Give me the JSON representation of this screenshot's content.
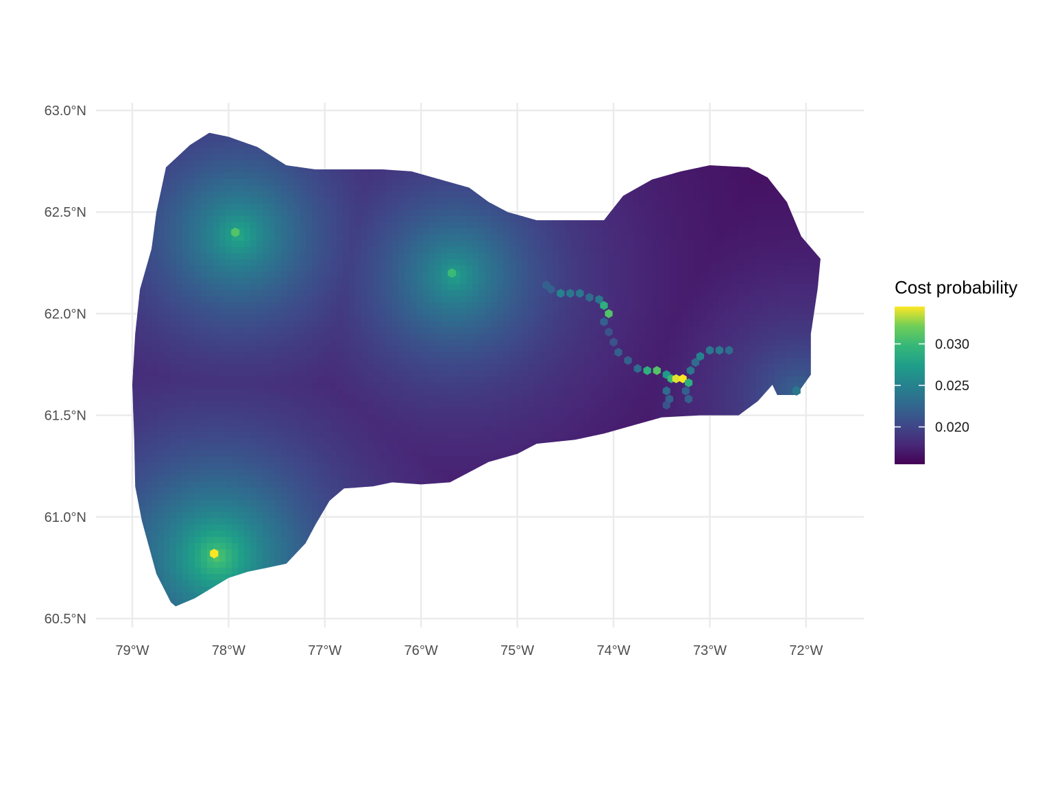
{
  "chart_data": {
    "type": "heatmap",
    "geometry": "hexagonal grid",
    "title": "",
    "xlabel": "",
    "ylabel": "",
    "xlim": [
      -79.4,
      -71.4
    ],
    "ylim": [
      60.42,
      63.06
    ],
    "grid": true,
    "x_ticks": [
      {
        "value": -79,
        "label": "79°W"
      },
      {
        "value": -78,
        "label": "78°W"
      },
      {
        "value": -77,
        "label": "77°W"
      },
      {
        "value": -76,
        "label": "76°W"
      },
      {
        "value": -75,
        "label": "75°W"
      },
      {
        "value": -74,
        "label": "74°W"
      },
      {
        "value": -73,
        "label": "73°W"
      },
      {
        "value": -72,
        "label": "72°W"
      }
    ],
    "y_ticks": [
      {
        "value": 60.5,
        "label": "60.5°N"
      },
      {
        "value": 61.0,
        "label": "61.0°N"
      },
      {
        "value": 61.5,
        "label": "61.5°N"
      },
      {
        "value": 62.0,
        "label": "62.0°N"
      },
      {
        "value": 62.5,
        "label": "62.5°N"
      },
      {
        "value": 63.0,
        "label": "63.0°N"
      }
    ],
    "region_outline": [
      [
        -78.55,
        60.56
      ],
      [
        -78.35,
        60.6
      ],
      [
        -78.0,
        60.7
      ],
      [
        -77.8,
        60.73
      ],
      [
        -77.4,
        60.77
      ],
      [
        -77.2,
        60.87
      ],
      [
        -77.1,
        60.96
      ],
      [
        -76.95,
        61.08
      ],
      [
        -76.8,
        61.14
      ],
      [
        -76.5,
        61.15
      ],
      [
        -76.3,
        61.17
      ],
      [
        -76.0,
        61.16
      ],
      [
        -75.7,
        61.17
      ],
      [
        -75.5,
        61.22
      ],
      [
        -75.3,
        61.27
      ],
      [
        -75.0,
        61.31
      ],
      [
        -74.8,
        61.36
      ],
      [
        -74.4,
        61.38
      ],
      [
        -74.1,
        61.41
      ],
      [
        -73.8,
        61.45
      ],
      [
        -73.5,
        61.49
      ],
      [
        -73.1,
        61.5
      ],
      [
        -72.7,
        61.5
      ],
      [
        -72.5,
        61.57
      ],
      [
        -72.35,
        61.65
      ],
      [
        -72.3,
        61.6
      ],
      [
        -72.1,
        61.6
      ],
      [
        -71.95,
        61.7
      ],
      [
        -71.95,
        61.9
      ],
      [
        -71.88,
        62.12
      ],
      [
        -71.85,
        62.27
      ],
      [
        -72.05,
        62.38
      ],
      [
        -72.2,
        62.55
      ],
      [
        -72.4,
        62.67
      ],
      [
        -72.6,
        62.72
      ],
      [
        -73.0,
        62.73
      ],
      [
        -73.3,
        62.7
      ],
      [
        -73.6,
        62.66
      ],
      [
        -73.9,
        62.58
      ],
      [
        -74.1,
        62.46
      ],
      [
        -74.4,
        62.46
      ],
      [
        -74.8,
        62.46
      ],
      [
        -75.1,
        62.5
      ],
      [
        -75.3,
        62.55
      ],
      [
        -75.5,
        62.62
      ],
      [
        -75.8,
        62.66
      ],
      [
        -76.1,
        62.7
      ],
      [
        -76.4,
        62.71
      ],
      [
        -76.8,
        62.71
      ],
      [
        -77.1,
        62.71
      ],
      [
        -77.4,
        62.73
      ],
      [
        -77.7,
        62.82
      ],
      [
        -78.0,
        62.87
      ],
      [
        -78.2,
        62.89
      ],
      [
        -78.4,
        62.83
      ],
      [
        -78.65,
        62.72
      ],
      [
        -78.75,
        62.5
      ],
      [
        -78.8,
        62.32
      ],
      [
        -78.92,
        62.12
      ],
      [
        -78.97,
        61.9
      ],
      [
        -79.0,
        61.65
      ],
      [
        -78.98,
        61.38
      ],
      [
        -78.97,
        61.15
      ],
      [
        -78.9,
        60.98
      ],
      [
        -78.75,
        60.72
      ],
      [
        -78.6,
        60.58
      ]
    ],
    "hotspots": [
      {
        "lon": -78.15,
        "lat": 60.82,
        "value": 0.0345
      },
      {
        "lon": -77.93,
        "lat": 62.4,
        "value": 0.031
      },
      {
        "lon": -75.68,
        "lat": 62.2,
        "value": 0.03
      },
      {
        "lon": -72.1,
        "lat": 61.62,
        "value": 0.024
      }
    ],
    "route_cells": [
      {
        "lon": -74.7,
        "lat": 62.14,
        "value": 0.022
      },
      {
        "lon": -74.65,
        "lat": 62.12,
        "value": 0.022
      },
      {
        "lon": -74.55,
        "lat": 62.1,
        "value": 0.025
      },
      {
        "lon": -74.45,
        "lat": 62.1,
        "value": 0.024
      },
      {
        "lon": -74.35,
        "lat": 62.1,
        "value": 0.024
      },
      {
        "lon": -74.25,
        "lat": 62.08,
        "value": 0.023
      },
      {
        "lon": -74.15,
        "lat": 62.07,
        "value": 0.024
      },
      {
        "lon": -74.1,
        "lat": 62.04,
        "value": 0.029
      },
      {
        "lon": -74.05,
        "lat": 62.0,
        "value": 0.031
      },
      {
        "lon": -74.1,
        "lat": 61.96,
        "value": 0.022
      },
      {
        "lon": -74.05,
        "lat": 61.91,
        "value": 0.021
      },
      {
        "lon": -74.0,
        "lat": 61.86,
        "value": 0.021
      },
      {
        "lon": -73.95,
        "lat": 61.81,
        "value": 0.022
      },
      {
        "lon": -73.85,
        "lat": 61.77,
        "value": 0.022
      },
      {
        "lon": -73.75,
        "lat": 61.73,
        "value": 0.023
      },
      {
        "lon": -73.65,
        "lat": 61.72,
        "value": 0.029
      },
      {
        "lon": -73.55,
        "lat": 61.72,
        "value": 0.031
      },
      {
        "lon": -73.45,
        "lat": 61.7,
        "value": 0.027
      },
      {
        "lon": -73.4,
        "lat": 61.68,
        "value": 0.03
      },
      {
        "lon": -73.35,
        "lat": 61.68,
        "value": 0.034
      },
      {
        "lon": -73.28,
        "lat": 61.68,
        "value": 0.0345
      },
      {
        "lon": -73.22,
        "lat": 61.66,
        "value": 0.029
      },
      {
        "lon": -73.2,
        "lat": 61.72,
        "value": 0.024
      },
      {
        "lon": -73.15,
        "lat": 61.76,
        "value": 0.023
      },
      {
        "lon": -73.1,
        "lat": 61.79,
        "value": 0.025
      },
      {
        "lon": -73.0,
        "lat": 61.82,
        "value": 0.024
      },
      {
        "lon": -72.9,
        "lat": 61.82,
        "value": 0.024
      },
      {
        "lon": -72.8,
        "lat": 61.82,
        "value": 0.023
      },
      {
        "lon": -73.45,
        "lat": 61.62,
        "value": 0.023
      },
      {
        "lon": -73.42,
        "lat": 61.58,
        "value": 0.022
      },
      {
        "lon": -73.45,
        "lat": 61.55,
        "value": 0.021
      },
      {
        "lon": -73.25,
        "lat": 61.62,
        "value": 0.022
      },
      {
        "lon": -73.22,
        "lat": 61.58,
        "value": 0.022
      }
    ],
    "value_range": [
      0.0155,
      0.0345
    ],
    "legend": {
      "title": "Cost probability",
      "placement": "right",
      "ticks": [
        {
          "value": 0.02,
          "label": "0.020"
        },
        {
          "value": 0.025,
          "label": "0.025"
        },
        {
          "value": 0.03,
          "label": "0.030"
        }
      ]
    },
    "colors": {
      "viridis_low": "#440154",
      "viridis_mid": "#21908c",
      "viridis_high": "#fde725",
      "grid": "#ebebeb",
      "tick_text": "#4d4d4d"
    }
  }
}
